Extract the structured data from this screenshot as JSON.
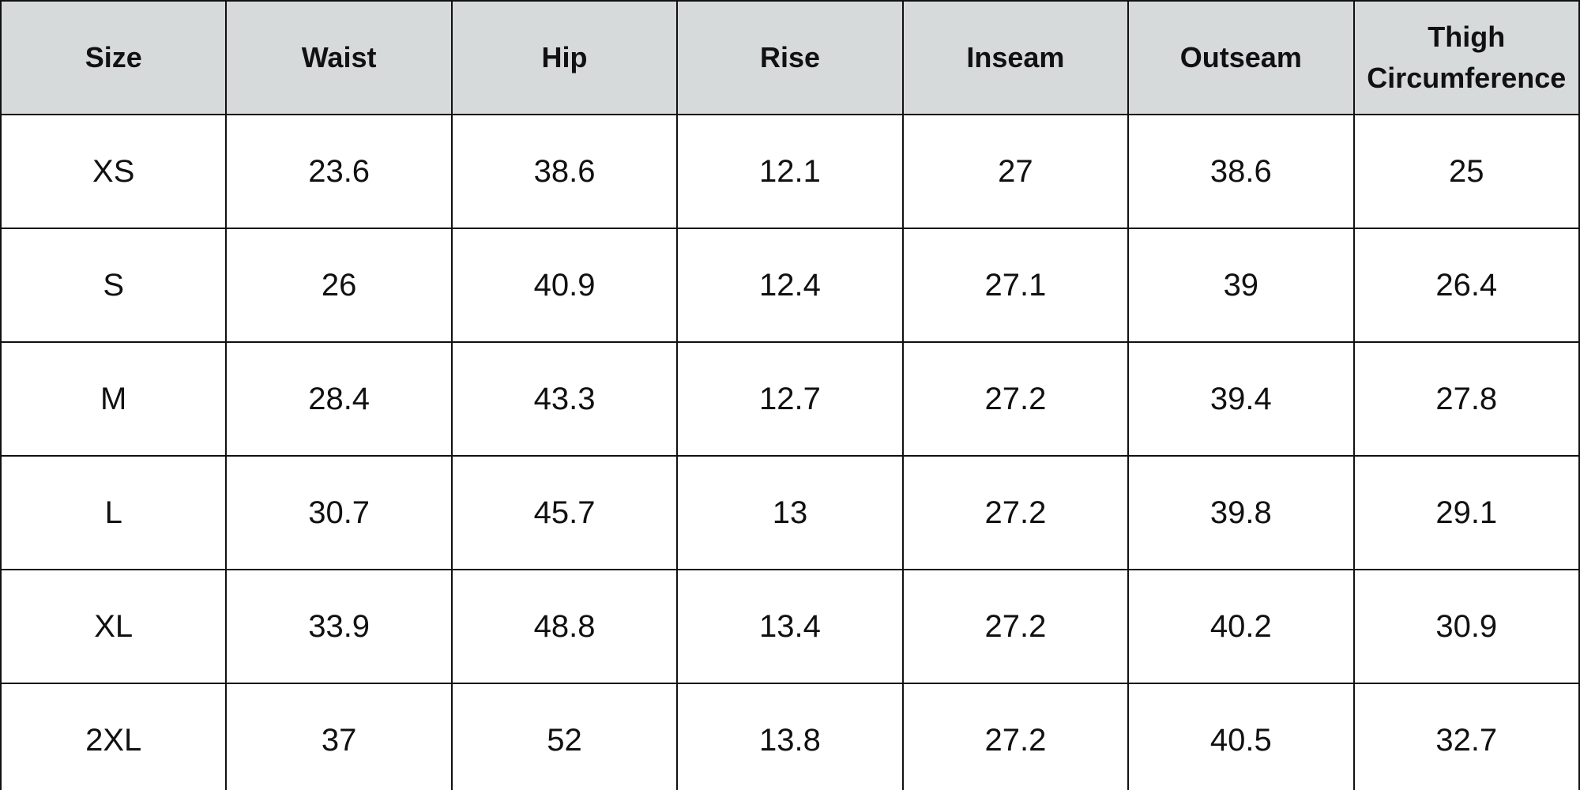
{
  "table": {
    "columns": [
      "Size",
      "Waist",
      "Hip",
      "Rise",
      "Inseam",
      "Outseam",
      "Thigh Circumference"
    ],
    "rows": [
      [
        "XS",
        23.6,
        38.6,
        12.1,
        27,
        38.6,
        25
      ],
      [
        "S",
        26,
        40.9,
        12.4,
        27.1,
        39,
        26.4
      ],
      [
        "M",
        28.4,
        43.3,
        12.7,
        27.2,
        39.4,
        27.8
      ],
      [
        "L",
        30.7,
        45.7,
        13,
        27.2,
        39.8,
        29.1
      ],
      [
        "XL",
        33.9,
        48.8,
        13.4,
        27.2,
        40.2,
        30.9
      ],
      [
        "2XL",
        37,
        52,
        13.8,
        27.2,
        40.5,
        32.7
      ]
    ]
  }
}
